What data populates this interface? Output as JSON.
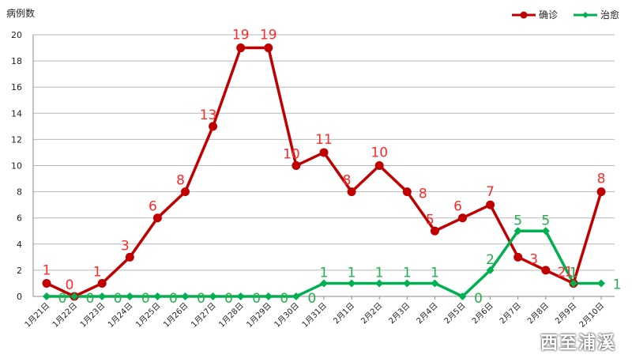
{
  "chart_data": {
    "type": "line",
    "ylabel": "病例数",
    "ylim": [
      0,
      20
    ],
    "yticks": [
      0,
      2,
      4,
      6,
      8,
      10,
      12,
      14,
      16,
      18,
      20
    ],
    "grid": true,
    "legend_position": "top-right",
    "categories": [
      "1月21日",
      "1月22日",
      "1月23日",
      "1月24日",
      "1月25日",
      "1月26日",
      "1月27日",
      "1月28日",
      "1月29日",
      "1月30日",
      "1月31日",
      "2月1日",
      "2月2日",
      "2月3日",
      "2月4日",
      "2月5日",
      "2月6日",
      "2月7日",
      "2月8日",
      "2月9日",
      "2月10日"
    ],
    "series": [
      {
        "name": "确诊",
        "color": "#c00000",
        "label_color": "#ff2a2a",
        "marker": "circle",
        "values": [
          1,
          0,
          1,
          3,
          6,
          8,
          13,
          19,
          19,
          10,
          11,
          8,
          10,
          8,
          5,
          6,
          7,
          3,
          2,
          1,
          8
        ]
      },
      {
        "name": "治愈",
        "color": "#00b050",
        "label_color": "#22b04a",
        "marker": "diamond",
        "values": [
          0,
          0,
          0,
          0,
          0,
          0,
          0,
          0,
          0,
          0,
          1,
          1,
          1,
          1,
          1,
          0,
          2,
          5,
          5,
          1,
          1
        ]
      }
    ]
  },
  "watermark": "西至浦溪"
}
